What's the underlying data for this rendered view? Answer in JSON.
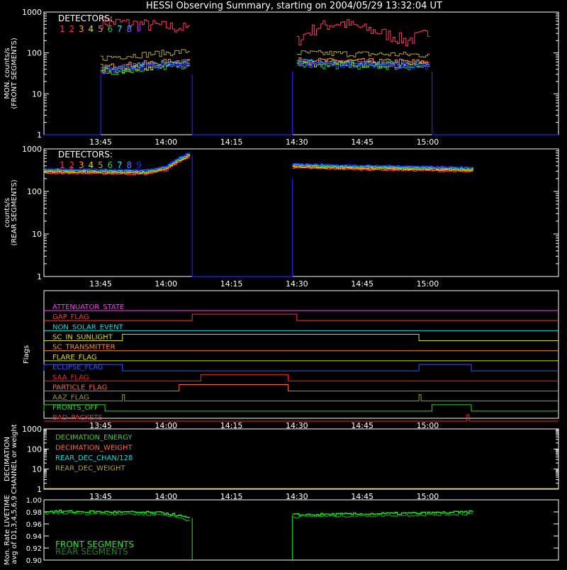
{
  "title": "HESSI Observing Summary, starting on 2004/05/29 13:32:04 UT",
  "colors": {
    "bg": "#000000",
    "axis": "#ffffff",
    "det": [
      "#ff3366",
      "#ff2a2a",
      "#ff9933",
      "#e0e000",
      "#b0a030",
      "#22cc22",
      "#00e0e0",
      "#4a7aff",
      "#2222ff"
    ]
  },
  "x_axis": {
    "start_min": 812,
    "end_min": 930,
    "tick_values": [
      825,
      840,
      855,
      870,
      885,
      900
    ],
    "tick_labels": [
      "13:45",
      "14:00",
      "14:15",
      "14:30",
      "14:45",
      "15:00"
    ],
    "minor_step": 5
  },
  "panels": {
    "front": {
      "ylabel_1": "MON. counts/s",
      "ylabel_2": "(FRONT SEGMENTS)",
      "y_ticks": [
        "1",
        "10",
        "100",
        "1000"
      ],
      "legend_title": "DETECTORS:",
      "legend_digits": [
        "1",
        "2",
        "3",
        "4",
        "5",
        "6",
        "7",
        "8",
        "9"
      ]
    },
    "rear": {
      "ylabel_1": "counts/s",
      "ylabel_2": "(REAR SEGMENTS)",
      "y_ticks": [
        "1",
        "10",
        "100",
        "1000"
      ],
      "legend_title": "DETECTORS:",
      "legend_digits": [
        "1",
        "2",
        "3",
        "4",
        "5",
        "6",
        "7",
        "8",
        "9"
      ]
    },
    "flags": {
      "ylabel": "Flags"
    },
    "decimation": {
      "ylabel_1": "DECIMATION",
      "ylabel_2": "CHANNEL or weight",
      "y_ticks": [
        "1",
        "10",
        "100",
        "1000"
      ],
      "legend": [
        {
          "label": "DECIMATION_ENERGY",
          "color": "#22dd22"
        },
        {
          "label": "DECIMATION_WEIGHT",
          "color": "#ff6633"
        },
        {
          "label": "REAR_DEC_CHAN/128",
          "color": "#00dddd"
        },
        {
          "label": "REAR_DEC_WEIGHT",
          "color": "#b0a030"
        }
      ]
    },
    "livetime": {
      "ylabel_1": "Mon. Rate LIVETIME",
      "ylabel_2": "avg of D1,3,4,5,6,9",
      "y_ticks": [
        "0.90",
        "0.92",
        "0.94",
        "0.96",
        "0.98",
        "1.00"
      ],
      "legend": [
        {
          "label": "FRONT SEGMENTS",
          "color": "#22ee22"
        },
        {
          "label": "REAR SEGMENTS",
          "color": "#138813"
        }
      ]
    }
  },
  "chart_data": [
    {
      "type": "line",
      "panel": "front",
      "title": "HESSI Observing Summary, starting on 2004/05/29 13:32:04 UT",
      "ylabel": "MON. counts/s (FRONT SEGMENTS)",
      "yscale": "log",
      "ylim": [
        1,
        1000
      ],
      "xlim": [
        "13:32",
        "15:10"
      ],
      "gaps": [
        [
          "14:06",
          "14:29"
        ]
      ],
      "series": [
        {
          "name": "1",
          "color": "#ff3366",
          "segments": [
            {
              "x": [
                "13:45",
                "13:50",
                "13:55",
                "14:00",
                "14:05"
              ],
              "y": [
                600,
                550,
                500,
                450,
                400
              ]
            },
            {
              "x": [
                "14:30",
                "14:35",
                "14:40",
                "14:45",
                "14:50",
                "14:55",
                "15:00"
              ],
              "y": [
                200,
                450,
                550,
                400,
                300,
                200,
                300
              ]
            }
          ]
        },
        {
          "name": "2",
          "color": "#ff2a2a",
          "segments": [
            {
              "x": [
                "13:45",
                "14:05"
              ],
              "y": [
                40,
                60
              ]
            },
            {
              "x": [
                "14:30",
                "15:00"
              ],
              "y": [
                60,
                55
              ]
            }
          ]
        },
        {
          "name": "3",
          "color": "#ff9933",
          "segments": [
            {
              "x": [
                "13:45",
                "14:05"
              ],
              "y": [
                45,
                65
              ]
            },
            {
              "x": [
                "14:30",
                "15:00"
              ],
              "y": [
                65,
                60
              ]
            }
          ]
        },
        {
          "name": "4",
          "color": "#e0e000",
          "segments": [
            {
              "x": [
                "13:45",
                "14:05"
              ],
              "y": [
                35,
                55
              ]
            },
            {
              "x": [
                "14:30",
                "15:00"
              ],
              "y": [
                55,
                50
              ]
            }
          ]
        },
        {
          "name": "5",
          "color": "#b0a030",
          "segments": [
            {
              "x": [
                "13:45",
                "14:05"
              ],
              "y": [
                75,
                110
              ]
            },
            {
              "x": [
                "14:30",
                "15:00"
              ],
              "y": [
                100,
                90
              ]
            }
          ]
        },
        {
          "name": "6",
          "color": "#22cc22",
          "segments": [
            {
              "x": [
                "13:45",
                "14:05"
              ],
              "y": [
                32,
                50
              ]
            },
            {
              "x": [
                "14:30",
                "15:00"
              ],
              "y": [
                50,
                45
              ]
            }
          ]
        },
        {
          "name": "7",
          "color": "#00e0e0",
          "segments": [
            {
              "x": [
                "13:45",
                "14:05"
              ],
              "y": [
                38,
                58
              ]
            },
            {
              "x": [
                "14:30",
                "15:00"
              ],
              "y": [
                58,
                52
              ]
            }
          ]
        },
        {
          "name": "8",
          "color": "#4a7aff",
          "segments": [
            {
              "x": [
                "13:45",
                "14:05"
              ],
              "y": [
                40,
                60
              ]
            },
            {
              "x": [
                "14:30",
                "15:00"
              ],
              "y": [
                60,
                55
              ]
            }
          ]
        },
        {
          "name": "9",
          "color": "#2222ff",
          "segments": [
            {
              "x": [
                "13:45",
                "14:05"
              ],
              "y": [
                36,
                54
              ]
            },
            {
              "x": [
                "14:30",
                "15:00"
              ],
              "y": [
                54,
                48
              ]
            }
          ]
        }
      ]
    },
    {
      "type": "line",
      "panel": "rear",
      "ylabel": "counts/s (REAR SEGMENTS)",
      "yscale": "log",
      "ylim": [
        1,
        1000
      ],
      "xlim": [
        "13:32",
        "15:10"
      ],
      "gaps": [
        [
          "14:06",
          "14:29"
        ]
      ],
      "series": [
        {
          "name": "1-9",
          "segments": [
            {
              "x": [
                "13:32",
                "13:45",
                "13:55",
                "14:00",
                "14:05"
              ],
              "y": [
                300,
                290,
                280,
                350,
                700
              ]
            },
            {
              "x": [
                "14:29",
                "14:35",
                "14:45",
                "15:00",
                "15:10"
              ],
              "y": [
                400,
                380,
                360,
                340,
                320
              ]
            }
          ]
        }
      ]
    },
    {
      "type": "line",
      "panel": "flags",
      "ylabel": "Flags",
      "xlim": [
        "13:32",
        "15:10"
      ],
      "series": [
        {
          "name": "ATTENUATOR_STATE",
          "color": "#ff33ff",
          "high_intervals": []
        },
        {
          "name": "GAP_FLAG",
          "color": "#ff3333",
          "high_intervals": [
            [
              "14:06",
              "14:30"
            ]
          ]
        },
        {
          "name": "NON_SOLAR_EVENT",
          "color": "#00dddd",
          "high_intervals": []
        },
        {
          "name": "SC_IN_SUNLIGHT",
          "color": "#dddd00",
          "high_intervals": [
            [
              "13:50",
              "14:58"
            ]
          ]
        },
        {
          "name": "SC_TRANSMITTER",
          "color": "#ff8833",
          "high_intervals": []
        },
        {
          "name": "FLARE_FLAG",
          "color": "#dddd00",
          "high_intervals": []
        },
        {
          "name": "ECLIPSE_FLAG",
          "color": "#3355ff",
          "high_intervals": [
            [
              "13:32",
              "13:50"
            ],
            [
              "14:58",
              "15:10"
            ]
          ]
        },
        {
          "name": "SAA_FLAG",
          "color": "#ff2222",
          "high_intervals": [
            [
              "14:08",
              "14:28"
            ]
          ]
        },
        {
          "name": "PARTICLE_FLAG",
          "color": "#ff6633",
          "high_intervals": [
            [
              "14:03",
              "14:28"
            ]
          ]
        },
        {
          "name": "AAZ_FLAG",
          "color": "#999933",
          "high_intervals": [
            [
              "13:50",
              "13:50"
            ],
            [
              "14:58",
              "14:58"
            ]
          ]
        },
        {
          "name": "FRONTS_OFF",
          "color": "#22dd22",
          "high_intervals": [
            [
              "13:32",
              "13:46"
            ],
            [
              "15:01",
              "15:10"
            ]
          ]
        },
        {
          "name": "BAD_PACKETS",
          "color": "#ff2222",
          "high_intervals": [
            [
              "15:09",
              "15:09"
            ]
          ]
        }
      ]
    },
    {
      "type": "line",
      "panel": "decimation",
      "ylabel": "DECIMATION CHANNEL or weight",
      "yscale": "log",
      "ylim": [
        1,
        1000
      ],
      "xlim": [
        "13:32",
        "15:10"
      ],
      "series": [
        {
          "name": "DECIMATION_ENERGY",
          "x": [
            "13:32",
            "15:10"
          ],
          "y": [
            1,
            1
          ]
        },
        {
          "name": "DECIMATION_WEIGHT",
          "x": [
            "13:32",
            "15:10"
          ],
          "y": [
            1,
            1
          ]
        },
        {
          "name": "REAR_DEC_CHAN/128",
          "x": [
            "13:32",
            "15:10"
          ],
          "y": [
            1,
            1
          ]
        },
        {
          "name": "REAR_DEC_WEIGHT",
          "x": [
            "13:32",
            "15:10"
          ],
          "y": [
            1,
            1
          ]
        }
      ]
    },
    {
      "type": "line",
      "panel": "livetime",
      "ylabel": "Mon. Rate LIVETIME avg of D1,3,4,5,6,9",
      "ylim": [
        0.9,
        1.0
      ],
      "xlim": [
        "13:32",
        "15:10"
      ],
      "series": [
        {
          "name": "FRONT SEGMENTS",
          "segments": [
            {
              "x": [
                "13:32",
                "13:45",
                "13:55",
                "14:00",
                "14:05"
              ],
              "y": [
                0.981,
                0.98,
                0.979,
                0.978,
                0.97
              ]
            },
            {
              "x": [
                "14:29",
                "14:40",
                "14:50",
                "15:00",
                "15:10"
              ],
              "y": [
                0.975,
                0.976,
                0.977,
                0.978,
                0.98
              ]
            }
          ]
        },
        {
          "name": "REAR SEGMENTS",
          "segments": [
            {
              "x": [
                "13:32",
                "13:45",
                "13:55",
                "14:00",
                "14:05"
              ],
              "y": [
                0.978,
                0.977,
                0.976,
                0.975,
                0.966
              ]
            },
            {
              "x": [
                "14:29",
                "14:40",
                "14:50",
                "15:00",
                "15:10"
              ],
              "y": [
                0.972,
                0.973,
                0.974,
                0.975,
                0.977
              ]
            }
          ]
        }
      ]
    }
  ]
}
